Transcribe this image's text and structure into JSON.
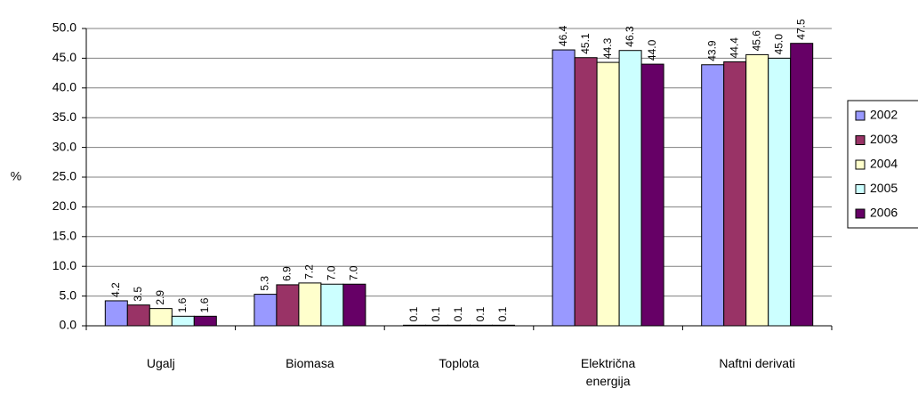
{
  "chart_data": {
    "type": "bar",
    "y_label": "%",
    "categories": [
      "Ugalj",
      "Biomasa",
      "Toplota",
      "Električna energija",
      "Naftni derivati"
    ],
    "series": [
      {
        "name": "2002",
        "color": "#9999ff",
        "values": [
          4.2,
          5.3,
          0.1,
          46.4,
          43.9
        ],
        "value_labels": [
          "4.2",
          "5.3",
          "0.1",
          "46.4",
          "43.9"
        ]
      },
      {
        "name": "2003",
        "color": "#993366",
        "values": [
          3.5,
          6.9,
          0.1,
          45.1,
          44.4
        ],
        "value_labels": [
          "3.5",
          "6.9",
          "0.1",
          "45.1",
          "44.4"
        ]
      },
      {
        "name": "2004",
        "color": "#ffffcc",
        "values": [
          2.9,
          7.2,
          0.1,
          44.3,
          45.6
        ],
        "value_labels": [
          "2.9",
          "7.2",
          "0.1",
          "44.3",
          "45.6"
        ]
      },
      {
        "name": "2005",
        "color": "#ccffff",
        "values": [
          1.6,
          7.0,
          0.1,
          46.3,
          45.0
        ],
        "value_labels": [
          "1.6",
          "7.0",
          "0.1",
          "46.3",
          "45.0"
        ]
      },
      {
        "name": "2006",
        "color": "#660066",
        "values": [
          1.6,
          7.0,
          0.1,
          44.0,
          47.5
        ],
        "value_labels": [
          "1.6",
          "7.0",
          "0.1",
          "44.0",
          "47.5"
        ]
      }
    ],
    "ylim": [
      0,
      50
    ],
    "yticks": [
      {
        "value": 0,
        "label": "0.0"
      },
      {
        "value": 5,
        "label": "5.0"
      },
      {
        "value": 10,
        "label": "10.0"
      },
      {
        "value": 15,
        "label": "15.0"
      },
      {
        "value": 20,
        "label": "20.0"
      },
      {
        "value": 25,
        "label": "25.0"
      },
      {
        "value": 30,
        "label": "30.0"
      },
      {
        "value": 35,
        "label": "35.0"
      },
      {
        "value": 40,
        "label": "40.0"
      },
      {
        "value": 45,
        "label": "45.0"
      },
      {
        "value": 50,
        "label": "50.0"
      }
    ],
    "grid": true,
    "legend": "right"
  }
}
